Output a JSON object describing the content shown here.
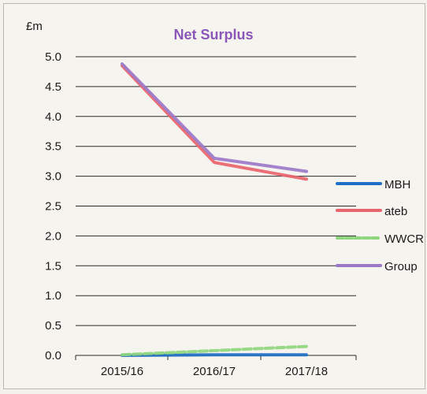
{
  "chart_data": {
    "type": "line",
    "title": "Net Surplus",
    "unit_label": "£m",
    "categories": [
      "2015/16",
      "2016/17",
      "2017/18"
    ],
    "ylim": [
      0,
      5
    ],
    "yticks": [
      "0.0",
      "0.5",
      "1.0",
      "1.5",
      "2.0",
      "2.5",
      "3.0",
      "3.5",
      "4.0",
      "4.5",
      "5.0"
    ],
    "grid": "horizontal",
    "legend_position": "right",
    "series": [
      {
        "name": "MBH",
        "values": [
          0.0,
          0.01,
          0.01
        ],
        "color": "#1f6fc6",
        "dash": "solid"
      },
      {
        "name": "ateb",
        "values": [
          4.85,
          3.23,
          2.95
        ],
        "color": "#e8646e",
        "dash": "solid"
      },
      {
        "name": "WWCR",
        "values": [
          0.01,
          0.08,
          0.15
        ],
        "color": "#8fd67e",
        "dash": "dashed"
      },
      {
        "name": "Group",
        "values": [
          4.88,
          3.3,
          3.08
        ],
        "color": "#9b79c9",
        "dash": "solid"
      }
    ]
  }
}
